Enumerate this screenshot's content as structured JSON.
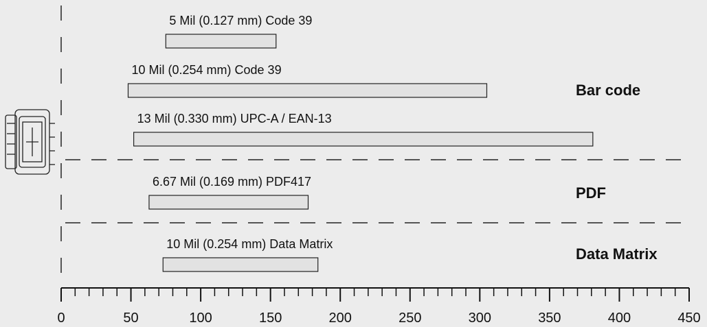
{
  "chart_data": {
    "type": "range-bar",
    "groups": [
      {
        "name": "Bar code",
        "categories": [
          "5 Mil (0.127 mm) Code 39",
          "10 Mil (0.254 mm) Code 39",
          "13 Mil (0.330 mm) UPC-A / EAN-13"
        ],
        "values": [
          [
            75,
            154
          ],
          [
            48,
            305
          ],
          [
            52,
            381
          ]
        ]
      },
      {
        "name": "PDF",
        "categories": [
          "6.67 Mil (0.169 mm) PDF417"
        ],
        "values": [
          [
            63,
            177
          ]
        ]
      },
      {
        "name": "Data Matrix",
        "categories": [
          "10 Mil (0.254 mm) Data Matrix"
        ],
        "values": [
          [
            73,
            184
          ]
        ]
      }
    ],
    "xlim": [
      0,
      450
    ],
    "xticks": [
      0,
      50,
      100,
      150,
      200,
      250,
      300,
      350,
      400,
      450
    ],
    "xminorticks": [
      10,
      20,
      30,
      40,
      60,
      70,
      80,
      90,
      110,
      120,
      130,
      140,
      160,
      170,
      180,
      190,
      210,
      220,
      230,
      240,
      260,
      270,
      280,
      290,
      310,
      320,
      330,
      340,
      360,
      370,
      380,
      390,
      410,
      420,
      430,
      440
    ],
    "color": "#e2e2e2"
  }
}
